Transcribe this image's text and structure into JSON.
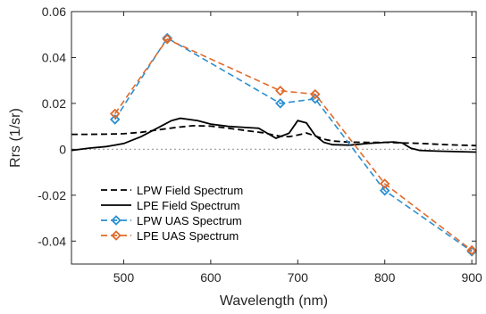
{
  "chart_data": {
    "type": "line",
    "xlabel": "Wavelength (nm)",
    "ylabel": "Rrs (1/sr)",
    "xlim": [
      440,
      905
    ],
    "ylim": [
      -0.05,
      0.06
    ],
    "xticks": [
      500,
      600,
      700,
      800,
      900
    ],
    "yticks": [
      -0.04,
      -0.02,
      0,
      0.02,
      0.04,
      0.06
    ],
    "xtick_labels": [
      "500",
      "600",
      "700",
      "800",
      "900"
    ],
    "ytick_labels": [
      "-0.04",
      "-0.02",
      "0",
      "0.02",
      "0.04",
      "0.06"
    ],
    "legend_position": "bottom-left",
    "zero_line": {
      "y": 0,
      "color": "#a6a6a6",
      "style": "dotted"
    },
    "series": [
      {
        "name": "LPW Field Spectrum",
        "color": "#000000",
        "dash": "dashed",
        "marker": "none",
        "x": [
          440,
          460,
          480,
          500,
          520,
          540,
          560,
          580,
          600,
          620,
          640,
          660,
          670,
          680,
          690,
          700,
          710,
          720,
          730,
          740,
          760,
          780,
          800,
          820,
          840,
          860,
          880,
          905
        ],
        "y": [
          0.0065,
          0.0065,
          0.0066,
          0.0068,
          0.0074,
          0.0085,
          0.0095,
          0.0103,
          0.0101,
          0.0092,
          0.0082,
          0.0072,
          0.0064,
          0.0057,
          0.0055,
          0.0062,
          0.0071,
          0.0058,
          0.0044,
          0.0036,
          0.0031,
          0.003,
          0.003,
          0.0028,
          0.0026,
          0.0022,
          0.0019,
          0.0016
        ]
      },
      {
        "name": "LPE Field Spectrum",
        "color": "#000000",
        "dash": "solid",
        "marker": "none",
        "x": [
          440,
          460,
          480,
          500,
          520,
          540,
          555,
          565,
          575,
          585,
          600,
          620,
          640,
          655,
          665,
          675,
          690,
          700,
          710,
          720,
          730,
          740,
          760,
          780,
          800,
          810,
          820,
          830,
          840,
          860,
          880,
          905
        ],
        "y": [
          -0.0005,
          0.0005,
          0.0012,
          0.0025,
          0.0055,
          0.0095,
          0.0125,
          0.0135,
          0.013,
          0.0125,
          0.011,
          0.01,
          0.0095,
          0.0092,
          0.007,
          0.0048,
          0.007,
          0.0125,
          0.0115,
          0.006,
          0.003,
          0.002,
          0.0018,
          0.0025,
          0.003,
          0.0032,
          0.0028,
          0.0005,
          -0.0005,
          -0.0008,
          -0.001,
          -0.0012
        ]
      },
      {
        "name": "LPW UAS Spectrum",
        "color": "#2a8fd0",
        "dash": "dashed",
        "marker": "diamond",
        "x": [
          490,
          550,
          680,
          720,
          800,
          900
        ],
        "y": [
          0.013,
          0.0485,
          0.02,
          0.022,
          -0.018,
          -0.0445
        ]
      },
      {
        "name": "LPE UAS Spectrum",
        "color": "#e06a2b",
        "dash": "dashed",
        "marker": "diamond",
        "x": [
          490,
          550,
          680,
          720,
          800,
          900
        ],
        "y": [
          0.0155,
          0.048,
          0.0255,
          0.024,
          -0.015,
          -0.044
        ]
      }
    ]
  }
}
